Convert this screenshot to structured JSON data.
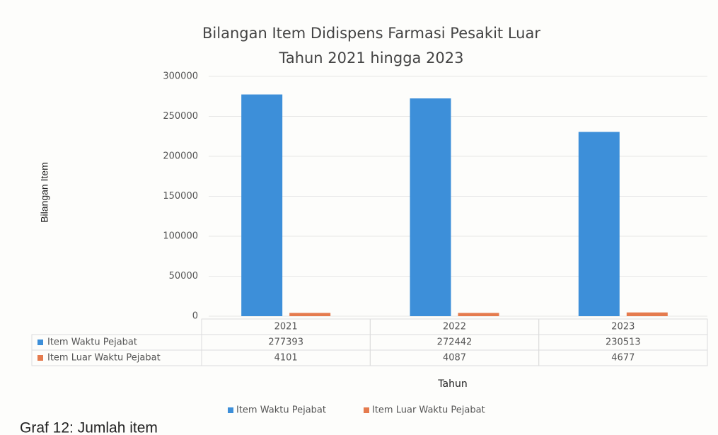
{
  "chart_data": {
    "type": "bar",
    "title": [
      "Bilangan Item Didispens Farmasi Pesakit Luar",
      "Tahun 2021 hingga 2023"
    ],
    "y_label": "Bilangan Item",
    "x_label": "Tahun",
    "categories": [
      "2021",
      "2022",
      "2023"
    ],
    "series": [
      {
        "name": "Item Waktu Pejabat",
        "color": "#3d8fd9",
        "values": [
          277393,
          272442,
          230513
        ]
      },
      {
        "name": "Item Luar Waktu Pejabat",
        "color": "#e57b4e",
        "values": [
          4101,
          4087,
          4677
        ]
      }
    ],
    "ylim": [
      0,
      300000
    ],
    "yticks": [
      0,
      50000,
      100000,
      150000,
      200000,
      250000,
      300000
    ],
    "grid": true,
    "legend": "bottom",
    "data_table": true,
    "caption": "Graf 12: Jumlah item"
  }
}
